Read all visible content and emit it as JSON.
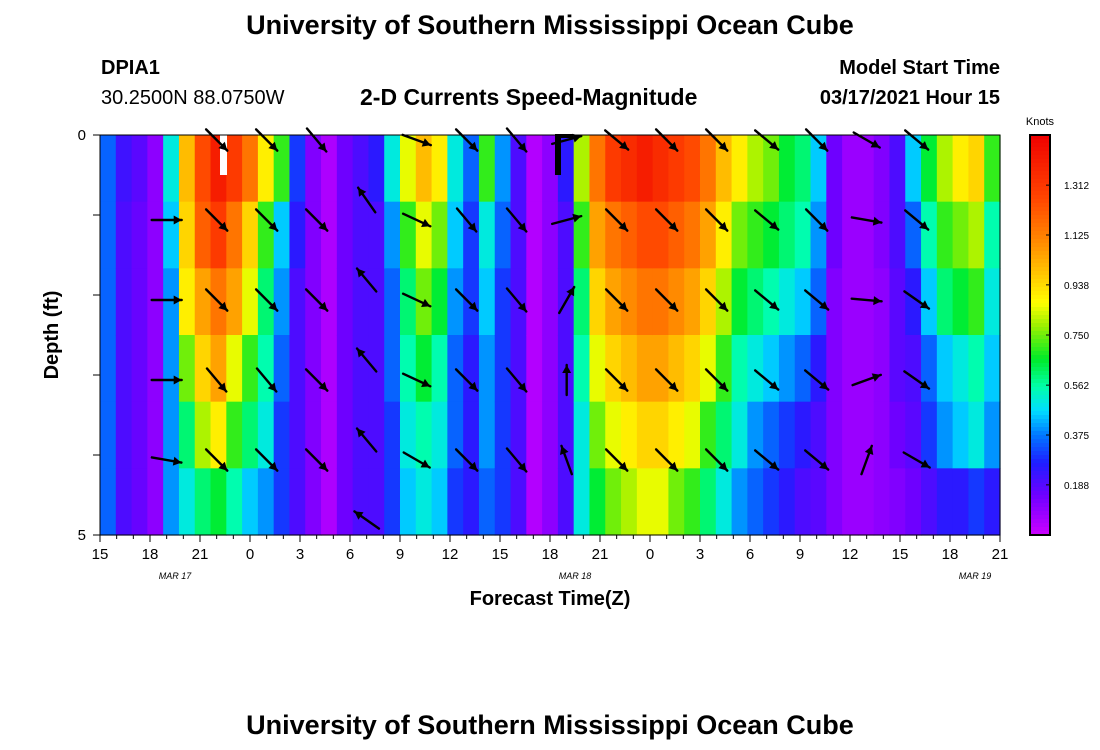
{
  "page": {
    "top_title": "University of Southern Mississippi Ocean Cube",
    "bottom_title": "University of Southern Mississippi Ocean Cube",
    "station": "DPIA1",
    "coords": "30.2500N 88.0750W",
    "plot_title": "2-D Currents Speed-Magnitude",
    "model_start_label": "Model Start Time",
    "model_start_value": "03/17/2021 Hour 15"
  },
  "chart_data": {
    "type": "heatmap",
    "title": "2-D Currents Speed-Magnitude",
    "xlabel": "Forecast Time(Z)",
    "ylabel": "Depth (ft)",
    "ylim": [
      0,
      5
    ],
    "y_tick_labels": [
      "0",
      "5"
    ],
    "x_tick_labels": [
      "15",
      "18",
      "21",
      "0",
      "3",
      "6",
      "9",
      "12",
      "15",
      "18",
      "21",
      "0",
      "3",
      "6",
      "9",
      "12",
      "15",
      "18",
      "21"
    ],
    "date_labels": [
      {
        "text": "MAR 17",
        "hour_index": 4.5
      },
      {
        "text": "MAR 18",
        "hour_index": 28.5
      },
      {
        "text": "MAR 19",
        "hour_index": 52.5
      }
    ],
    "depth_levels": [
      0.25,
      1.25,
      2.25,
      3.25,
      4.25,
      5.25
    ],
    "speed_knots_by_time": [
      [
        0.35,
        0.35,
        0.35,
        0.35,
        0.35,
        0.35
      ],
      [
        0.22,
        0.2,
        0.2,
        0.2,
        0.2,
        0.2
      ],
      [
        0.18,
        0.16,
        0.16,
        0.16,
        0.16,
        0.16
      ],
      [
        0.1,
        0.1,
        0.1,
        0.1,
        0.1,
        0.1
      ],
      [
        0.5,
        0.45,
        0.4,
        0.4,
        0.4,
        0.4
      ],
      [
        1.0,
        0.95,
        0.9,
        0.75,
        0.6,
        0.5
      ],
      [
        1.25,
        1.2,
        1.05,
        0.95,
        0.8,
        0.6
      ],
      [
        1.4,
        1.3,
        1.15,
        1.05,
        0.9,
        0.65
      ],
      [
        1.3,
        1.15,
        1.05,
        0.85,
        0.7,
        0.55
      ],
      [
        1.15,
        0.95,
        0.85,
        0.7,
        0.6,
        0.45
      ],
      [
        0.9,
        0.7,
        0.6,
        0.55,
        0.5,
        0.4
      ],
      [
        0.7,
        0.45,
        0.4,
        0.35,
        0.3,
        0.3
      ],
      [
        0.3,
        0.25,
        0.2,
        0.2,
        0.2,
        0.2
      ],
      [
        0.12,
        0.12,
        0.12,
        0.12,
        0.12,
        0.12
      ],
      [
        0.05,
        0.05,
        0.05,
        0.05,
        0.05,
        0.05
      ],
      [
        0.15,
        0.15,
        0.15,
        0.15,
        0.15,
        0.15
      ],
      [
        0.2,
        0.2,
        0.2,
        0.2,
        0.2,
        0.2
      ],
      [
        0.25,
        0.2,
        0.2,
        0.2,
        0.2,
        0.2
      ],
      [
        0.5,
        0.4,
        0.35,
        0.35,
        0.3,
        0.3
      ],
      [
        0.85,
        0.7,
        0.6,
        0.55,
        0.5,
        0.45
      ],
      [
        1.0,
        0.85,
        0.75,
        0.65,
        0.55,
        0.5
      ],
      [
        0.9,
        0.75,
        0.65,
        0.55,
        0.5,
        0.45
      ],
      [
        0.5,
        0.45,
        0.4,
        0.35,
        0.35,
        0.3
      ],
      [
        0.35,
        0.3,
        0.3,
        0.25,
        0.25,
        0.25
      ],
      [
        0.7,
        0.5,
        0.45,
        0.4,
        0.4,
        0.35
      ],
      [
        0.4,
        0.35,
        0.3,
        0.3,
        0.3,
        0.3
      ],
      [
        0.2,
        0.2,
        0.2,
        0.2,
        0.2,
        0.2
      ],
      [
        0.04,
        0.04,
        0.04,
        0.04,
        0.04,
        0.04
      ],
      [
        0.1,
        0.1,
        0.1,
        0.1,
        0.1,
        0.1
      ],
      [
        0.25,
        0.2,
        0.2,
        0.2,
        0.2,
        0.2
      ],
      [
        0.8,
        0.7,
        0.6,
        0.55,
        0.5,
        0.5
      ],
      [
        1.15,
        1.05,
        0.95,
        0.85,
        0.75,
        0.65
      ],
      [
        1.3,
        1.15,
        1.05,
        0.95,
        0.85,
        0.75
      ],
      [
        1.35,
        1.2,
        1.1,
        1.0,
        0.9,
        0.8
      ],
      [
        1.4,
        1.25,
        1.15,
        1.05,
        0.95,
        0.85
      ],
      [
        1.35,
        1.25,
        1.15,
        1.05,
        0.95,
        0.85
      ],
      [
        1.3,
        1.2,
        1.1,
        1.0,
        0.9,
        0.75
      ],
      [
        1.25,
        1.15,
        1.05,
        0.95,
        0.85,
        0.7
      ],
      [
        1.15,
        1.05,
        0.95,
        0.85,
        0.7,
        0.6
      ],
      [
        1.0,
        0.9,
        0.8,
        0.7,
        0.6,
        0.5
      ],
      [
        0.9,
        0.75,
        0.65,
        0.55,
        0.5,
        0.4
      ],
      [
        0.8,
        0.7,
        0.6,
        0.5,
        0.4,
        0.35
      ],
      [
        0.75,
        0.65,
        0.55,
        0.45,
        0.35,
        0.3
      ],
      [
        0.65,
        0.6,
        0.5,
        0.4,
        0.3,
        0.25
      ],
      [
        0.6,
        0.55,
        0.45,
        0.35,
        0.25,
        0.2
      ],
      [
        0.45,
        0.4,
        0.35,
        0.25,
        0.2,
        0.18
      ],
      [
        0.15,
        0.15,
        0.12,
        0.12,
        0.12,
        0.12
      ],
      [
        0.08,
        0.08,
        0.08,
        0.08,
        0.08,
        0.08
      ],
      [
        0.08,
        0.08,
        0.08,
        0.08,
        0.08,
        0.08
      ],
      [
        0.12,
        0.12,
        0.1,
        0.1,
        0.1,
        0.1
      ],
      [
        0.2,
        0.2,
        0.18,
        0.18,
        0.15,
        0.12
      ],
      [
        0.45,
        0.35,
        0.25,
        0.2,
        0.18,
        0.15
      ],
      [
        0.65,
        0.55,
        0.45,
        0.35,
        0.3,
        0.2
      ],
      [
        0.8,
        0.7,
        0.6,
        0.45,
        0.4,
        0.25
      ],
      [
        0.9,
        0.75,
        0.65,
        0.5,
        0.45,
        0.25
      ],
      [
        0.95,
        0.8,
        0.7,
        0.55,
        0.5,
        0.3
      ],
      [
        0.7,
        0.55,
        0.5,
        0.45,
        0.4,
        0.25
      ]
    ],
    "arrows": [
      {
        "hour": 4,
        "depth": 1.0,
        "dir_deg": 90
      },
      {
        "hour": 4,
        "depth": 2.0,
        "dir_deg": 90
      },
      {
        "hour": 4,
        "depth": 3.0,
        "dir_deg": 90
      },
      {
        "hour": 4,
        "depth": 4.0,
        "dir_deg": 100
      },
      {
        "hour": 7,
        "depth": 0.0,
        "dir_deg": 135
      },
      {
        "hour": 7,
        "depth": 1.0,
        "dir_deg": 135
      },
      {
        "hour": 7,
        "depth": 2.0,
        "dir_deg": 135
      },
      {
        "hour": 7,
        "depth": 3.0,
        "dir_deg": 140
      },
      {
        "hour": 7,
        "depth": 4.0,
        "dir_deg": 135
      },
      {
        "hour": 10,
        "depth": 0.0,
        "dir_deg": 135
      },
      {
        "hour": 10,
        "depth": 1.0,
        "dir_deg": 135
      },
      {
        "hour": 10,
        "depth": 2.0,
        "dir_deg": 135
      },
      {
        "hour": 10,
        "depth": 3.0,
        "dir_deg": 140
      },
      {
        "hour": 10,
        "depth": 4.0,
        "dir_deg": 135
      },
      {
        "hour": 13,
        "depth": 0.0,
        "dir_deg": 140
      },
      {
        "hour": 13,
        "depth": 1.0,
        "dir_deg": 135
      },
      {
        "hour": 13,
        "depth": 2.0,
        "dir_deg": 135
      },
      {
        "hour": 13,
        "depth": 3.0,
        "dir_deg": 135
      },
      {
        "hour": 13,
        "depth": 4.0,
        "dir_deg": 135
      },
      {
        "hour": 16,
        "depth": 0.75,
        "dir_deg": 325
      },
      {
        "hour": 16,
        "depth": 1.75,
        "dir_deg": 320
      },
      {
        "hour": 16,
        "depth": 2.75,
        "dir_deg": 320
      },
      {
        "hour": 16,
        "depth": 3.75,
        "dir_deg": 320
      },
      {
        "hour": 16,
        "depth": 4.75,
        "dir_deg": 305
      },
      {
        "hour": 19,
        "depth": 0.0,
        "dir_deg": 110
      },
      {
        "hour": 19,
        "depth": 1.0,
        "dir_deg": 115
      },
      {
        "hour": 19,
        "depth": 2.0,
        "dir_deg": 115
      },
      {
        "hour": 19,
        "depth": 3.0,
        "dir_deg": 115
      },
      {
        "hour": 19,
        "depth": 4.0,
        "dir_deg": 120
      },
      {
        "hour": 22,
        "depth": 0.0,
        "dir_deg": 135
      },
      {
        "hour": 22,
        "depth": 1.0,
        "dir_deg": 140
      },
      {
        "hour": 22,
        "depth": 2.0,
        "dir_deg": 135
      },
      {
        "hour": 22,
        "depth": 3.0,
        "dir_deg": 135
      },
      {
        "hour": 22,
        "depth": 4.0,
        "dir_deg": 135
      },
      {
        "hour": 25,
        "depth": 0.0,
        "dir_deg": 140
      },
      {
        "hour": 25,
        "depth": 1.0,
        "dir_deg": 140
      },
      {
        "hour": 25,
        "depth": 2.0,
        "dir_deg": 140
      },
      {
        "hour": 25,
        "depth": 3.0,
        "dir_deg": 140
      },
      {
        "hour": 25,
        "depth": 4.0,
        "dir_deg": 140
      },
      {
        "hour": 28,
        "depth": 0.0,
        "dir_deg": 75
      },
      {
        "hour": 28,
        "depth": 1.0,
        "dir_deg": 75
      },
      {
        "hour": 28,
        "depth": 2.0,
        "dir_deg": 30
      },
      {
        "hour": 28,
        "depth": 3.0,
        "dir_deg": 0
      },
      {
        "hour": 28,
        "depth": 4.0,
        "dir_deg": 340
      },
      {
        "hour": 31,
        "depth": 0.0,
        "dir_deg": 130
      },
      {
        "hour": 31,
        "depth": 1.0,
        "dir_deg": 135
      },
      {
        "hour": 31,
        "depth": 2.0,
        "dir_deg": 135
      },
      {
        "hour": 31,
        "depth": 3.0,
        "dir_deg": 135
      },
      {
        "hour": 31,
        "depth": 4.0,
        "dir_deg": 135
      },
      {
        "hour": 34,
        "depth": 0.0,
        "dir_deg": 135
      },
      {
        "hour": 34,
        "depth": 1.0,
        "dir_deg": 135
      },
      {
        "hour": 34,
        "depth": 2.0,
        "dir_deg": 135
      },
      {
        "hour": 34,
        "depth": 3.0,
        "dir_deg": 135
      },
      {
        "hour": 34,
        "depth": 4.0,
        "dir_deg": 135
      },
      {
        "hour": 37,
        "depth": 0.0,
        "dir_deg": 135
      },
      {
        "hour": 37,
        "depth": 1.0,
        "dir_deg": 135
      },
      {
        "hour": 37,
        "depth": 2.0,
        "dir_deg": 135
      },
      {
        "hour": 37,
        "depth": 3.0,
        "dir_deg": 135
      },
      {
        "hour": 37,
        "depth": 4.0,
        "dir_deg": 135
      },
      {
        "hour": 40,
        "depth": 0.0,
        "dir_deg": 130
      },
      {
        "hour": 40,
        "depth": 1.0,
        "dir_deg": 130
      },
      {
        "hour": 40,
        "depth": 2.0,
        "dir_deg": 130
      },
      {
        "hour": 40,
        "depth": 3.0,
        "dir_deg": 130
      },
      {
        "hour": 40,
        "depth": 4.0,
        "dir_deg": 130
      },
      {
        "hour": 43,
        "depth": 0.0,
        "dir_deg": 135
      },
      {
        "hour": 43,
        "depth": 1.0,
        "dir_deg": 135
      },
      {
        "hour": 43,
        "depth": 2.0,
        "dir_deg": 130
      },
      {
        "hour": 43,
        "depth": 3.0,
        "dir_deg": 130
      },
      {
        "hour": 43,
        "depth": 4.0,
        "dir_deg": 130
      },
      {
        "hour": 46,
        "depth": 0.0,
        "dir_deg": 120
      },
      {
        "hour": 46,
        "depth": 1.0,
        "dir_deg": 100
      },
      {
        "hour": 46,
        "depth": 2.0,
        "dir_deg": 95
      },
      {
        "hour": 46,
        "depth": 3.0,
        "dir_deg": 70
      },
      {
        "hour": 46,
        "depth": 4.0,
        "dir_deg": 20
      },
      {
        "hour": 49,
        "depth": 0.0,
        "dir_deg": 130
      },
      {
        "hour": 49,
        "depth": 1.0,
        "dir_deg": 130
      },
      {
        "hour": 49,
        "depth": 2.0,
        "dir_deg": 125
      },
      {
        "hour": 49,
        "depth": 3.0,
        "dir_deg": 125
      },
      {
        "hour": 49,
        "depth": 4.0,
        "dir_deg": 120
      }
    ],
    "colorbar": {
      "label": "Knots",
      "min": 0.0,
      "max": 1.5,
      "tick_labels": [
        "1.312",
        "1.125",
        "0.938",
        "0.750",
        "0.562",
        "0.375",
        "0.188"
      ],
      "tick_values": [
        1.312,
        1.125,
        0.938,
        0.75,
        0.562,
        0.375,
        0.188
      ]
    }
  }
}
